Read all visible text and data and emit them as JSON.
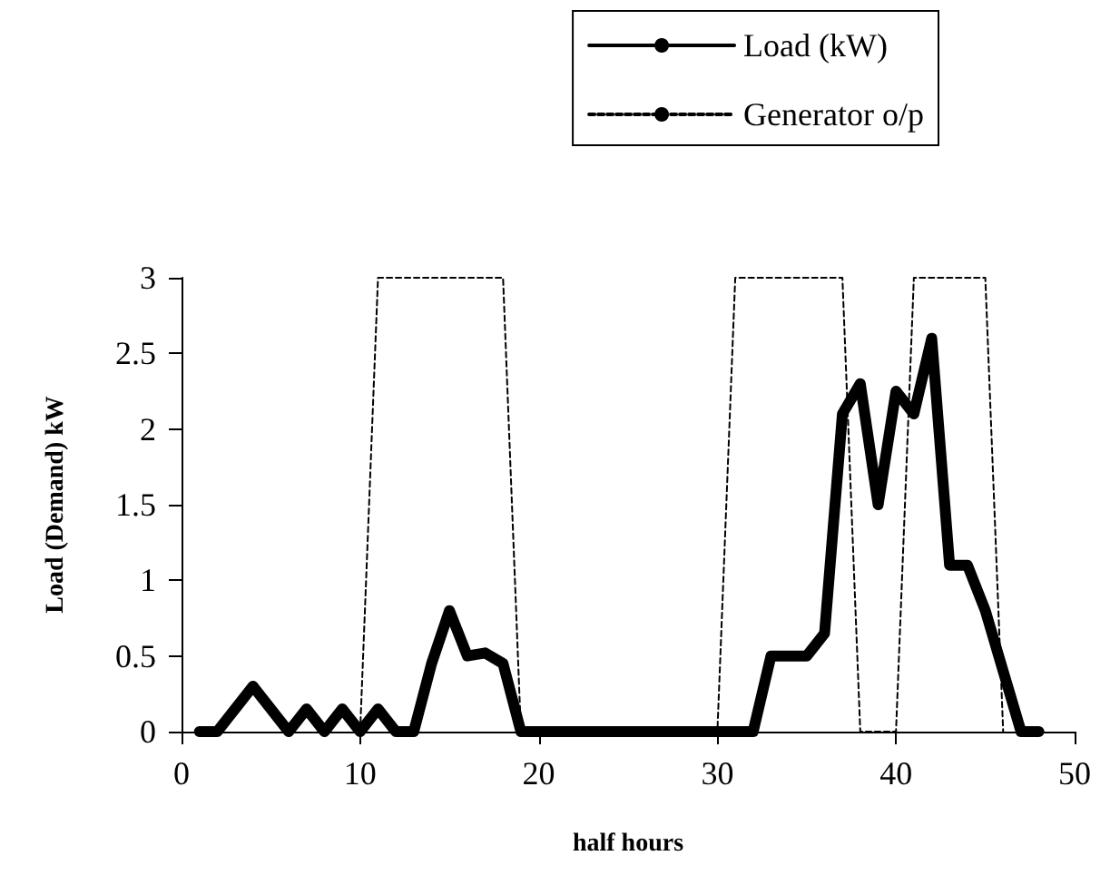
{
  "chart_data": {
    "type": "line",
    "xlabel": "half hours",
    "ylabel": "Load (Demand) kW",
    "x": [
      1,
      2,
      3,
      4,
      5,
      6,
      7,
      8,
      9,
      10,
      11,
      12,
      13,
      14,
      15,
      16,
      17,
      18,
      19,
      20,
      21,
      22,
      23,
      24,
      25,
      26,
      27,
      28,
      29,
      30,
      31,
      32,
      33,
      34,
      35,
      36,
      37,
      38,
      39,
      40,
      41,
      42,
      43,
      44,
      45,
      46,
      47,
      48
    ],
    "series": [
      {
        "name": "Load (kW)",
        "color": "#000000",
        "line_style": "solid",
        "values": [
          0,
          0,
          0.15,
          0.3,
          0.15,
          0,
          0.15,
          0,
          0.15,
          0,
          0.15,
          0,
          0,
          0.45,
          0.8,
          0.5,
          0.52,
          0.45,
          0,
          0,
          0,
          0,
          0,
          0,
          0,
          0,
          0,
          0,
          0,
          0,
          0,
          0,
          0.5,
          0.5,
          0.5,
          0.65,
          2.1,
          2.3,
          1.5,
          2.25,
          2.1,
          2.6,
          1.1,
          1.1,
          0.8,
          0.4,
          0,
          0
        ]
      },
      {
        "name": "Generator o/p",
        "color": "#000000",
        "line_style": "dashed",
        "x": [
          10,
          11,
          18,
          19,
          30,
          31,
          37,
          38,
          40,
          41,
          45,
          46
        ],
        "values": [
          0,
          3,
          3,
          0,
          0,
          3,
          3,
          0,
          0,
          3,
          3,
          0
        ]
      }
    ],
    "xlim": [
      0,
      50
    ],
    "xticks": [
      0,
      10,
      20,
      30,
      40,
      50
    ],
    "ylim": [
      0,
      3
    ],
    "yticks": [
      0,
      0.5,
      1,
      1.5,
      2,
      2.5,
      3
    ],
    "grid": false,
    "legend": "top right",
    "marker": "none"
  }
}
